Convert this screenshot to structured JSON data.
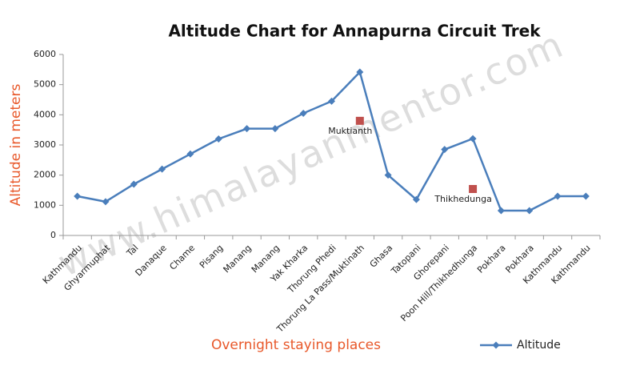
{
  "chart_data": {
    "type": "line",
    "title": "Altitude Chart for Annapurna Circuit Trek",
    "x_label": "Overnight staying places",
    "y_label": "Altitude in meters",
    "watermark": "www.himalayanmentor.com",
    "categories": [
      "Kathmandu",
      "Ghyarmuphat",
      "Tal",
      "Danaque",
      "Chame",
      "Pisang",
      "Manang",
      "Manang",
      "Yak Kharka",
      "Thorung Phedi",
      "Thorung La Pass/Muktinath",
      "Ghasa",
      "Tatopani",
      "Ghorepani",
      "Poon Hill/Thikhedhunga",
      "Pokhara",
      "Pokhara",
      "Kathmandu",
      "Kathmandu"
    ],
    "series": [
      {
        "name": "Altitude",
        "color": "#4a7ebb",
        "values": [
          1300,
          1120,
          1700,
          2200,
          2700,
          3200,
          3540,
          3540,
          4050,
          4450,
          5416,
          2000,
          1190,
          2850,
          3210,
          822,
          822,
          1300,
          1300
        ]
      }
    ],
    "annotations": [
      {
        "label": "Muktianth",
        "x": "Thorung La Pass/Muktinath",
        "y": 3800,
        "color": "#c0504d"
      },
      {
        "label": "Thikhedunga",
        "x": "Poon Hill/Thikhedhunga",
        "y": 1540,
        "color": "#c0504d"
      }
    ],
    "ylim": [
      0,
      6000
    ],
    "yticks": [
      0,
      1000,
      2000,
      3000,
      4000,
      5000,
      6000
    ],
    "legend": "bottom-right",
    "label_color": "#e8582a"
  }
}
